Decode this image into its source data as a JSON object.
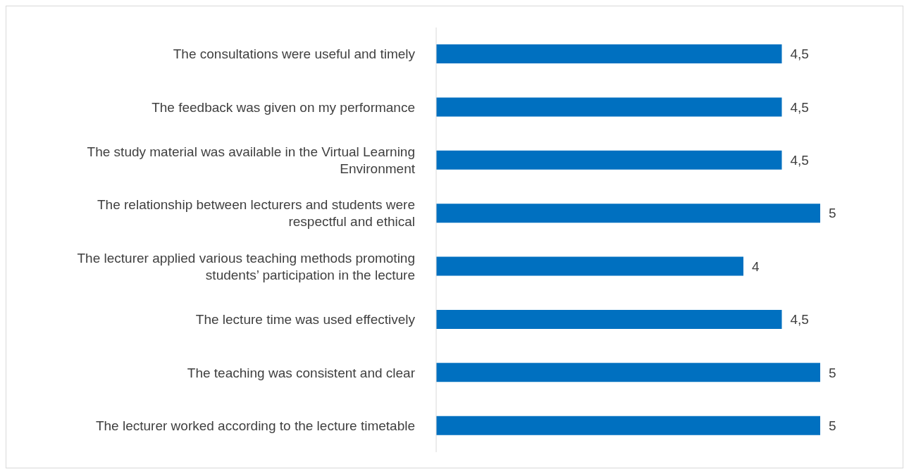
{
  "chart_data": {
    "type": "bar",
    "orientation": "horizontal",
    "categories": [
      "The consultations were useful and timely",
      "The feedback was given on my performance",
      "The study material was available in the Virtual Learning Environment",
      "The relationship between lecturers and students were respectful and ethical",
      "The lecturer applied various teaching methods promoting students’ participation in the lecture",
      "The lecture time was used effectively",
      "The teaching was consistent and clear",
      "The lecturer worked according to the lecture timetable"
    ],
    "values": [
      4.5,
      4.5,
      4.5,
      5,
      4,
      4.5,
      5,
      5
    ],
    "value_labels": [
      "4,5",
      "4,5",
      "4,5",
      "5",
      "4",
      "4,5",
      "5",
      "5"
    ],
    "color": "#0070c0",
    "tick_labels": "y"
  }
}
